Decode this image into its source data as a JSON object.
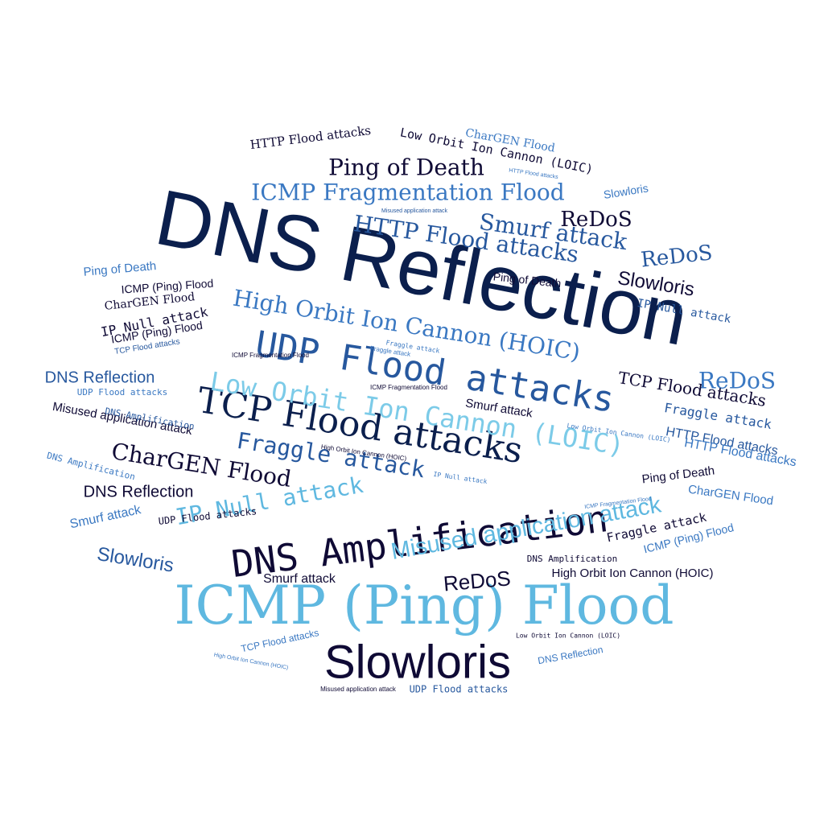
{
  "palette": {
    "navy": "#0b1f4d",
    "darknavy": "#0f0a35",
    "blue": "#27589e",
    "mid": "#3a78c2",
    "light": "#5fb8e0",
    "pale": "#7ccbe8"
  },
  "words": [
    {
      "text": "DNS Reflection",
      "color": "navy"
    },
    {
      "text": "ICMP (Ping) Flood",
      "color": "light"
    },
    {
      "text": "Slowloris",
      "color": "darknavy"
    },
    {
      "text": "DNS Amplification",
      "color": "darknavy"
    },
    {
      "text": "UDP Flood attacks",
      "color": "blue"
    },
    {
      "text": "TCP Flood attacks",
      "color": "navy"
    },
    {
      "text": "Low Orbit Ion Cannon (LOIC)",
      "color": "pale"
    },
    {
      "text": "High Orbit Ion Cannon (HOIC)",
      "color": "mid"
    },
    {
      "text": "Misused application attack",
      "color": "light"
    },
    {
      "text": "ICMP Fragmentation Flood",
      "color": "mid"
    },
    {
      "text": "HTTP Flood attacks",
      "color": "blue"
    },
    {
      "text": "Ping of Death",
      "color": "darknavy"
    },
    {
      "text": "Fraggle attack",
      "color": "blue"
    },
    {
      "text": "IP Null attack",
      "color": "light"
    },
    {
      "text": "CharGEN Flood",
      "color": "darknavy"
    },
    {
      "text": "Smurf attack",
      "color": "blue"
    },
    {
      "text": "ReDoS",
      "color": "darknavy"
    },
    {
      "text": "ReDoS",
      "color": "blue"
    },
    {
      "text": "ReDoS",
      "color": "mid"
    },
    {
      "text": "ReDoS",
      "color": "darknavy"
    },
    {
      "text": "Slowloris",
      "color": "darknavy"
    },
    {
      "text": "Slowloris",
      "color": "blue"
    },
    {
      "text": "Slowloris",
      "color": "mid"
    },
    {
      "text": "DNS Reflection",
      "color": "blue"
    },
    {
      "text": "DNS Reflection",
      "color": "darknavy"
    },
    {
      "text": "DNS Reflection",
      "color": "mid"
    },
    {
      "text": "TCP Flood attacks",
      "color": "darknavy"
    },
    {
      "text": "TCP Flood attacks",
      "color": "mid"
    },
    {
      "text": "TCP Flood attacks",
      "color": "blue"
    },
    {
      "text": "HTTP Flood attacks",
      "color": "darknavy"
    },
    {
      "text": "HTTP Flood attacks",
      "color": "blue"
    },
    {
      "text": "HTTP Flood attacks",
      "color": "mid"
    },
    {
      "text": "Fraggle attack",
      "color": "blue"
    },
    {
      "text": "Fraggle attack",
      "color": "darknavy"
    },
    {
      "text": "Fraggle attack",
      "color": "mid"
    },
    {
      "text": "Smurf attack",
      "color": "darknavy"
    },
    {
      "text": "Smurf attack",
      "color": "darknavy"
    },
    {
      "text": "Smurf attack",
      "color": "mid"
    },
    {
      "text": "Ping of Death",
      "color": "mid"
    },
    {
      "text": "Ping of Death",
      "color": "darknavy"
    },
    {
      "text": "Ping of Death",
      "color": "darknavy"
    },
    {
      "text": "CharGEN Flood",
      "color": "mid"
    },
    {
      "text": "CharGEN Flood",
      "color": "darknavy"
    },
    {
      "text": "CharGEN Flood",
      "color": "mid"
    },
    {
      "text": "IP Null attack",
      "color": "darknavy"
    },
    {
      "text": "IP Null attack",
      "color": "blue"
    },
    {
      "text": "IP Null attack",
      "color": "mid"
    },
    {
      "text": "ICMP (Ping) Flood",
      "color": "darknavy"
    },
    {
      "text": "ICMP (Ping) Flood",
      "color": "darknavy"
    },
    {
      "text": "ICMP (Ping) Flood",
      "color": "mid"
    },
    {
      "text": "ICMP Fragmentation Flood",
      "color": "darknavy"
    },
    {
      "text": "ICMP Fragmentation Flood",
      "color": "darknavy"
    },
    {
      "text": "ICMP Fragmentation Flood",
      "color": "mid"
    },
    {
      "text": "UDP Flood attacks",
      "color": "mid"
    },
    {
      "text": "UDP Flood attacks",
      "color": "darknavy"
    },
    {
      "text": "UDP Flood attacks",
      "color": "blue"
    },
    {
      "text": "Misused application attack",
      "color": "darknavy"
    },
    {
      "text": "Misused application attack",
      "color": "darknavy"
    },
    {
      "text": "Misused application attack",
      "color": "blue"
    },
    {
      "text": "DNS Amplification",
      "color": "blue"
    },
    {
      "text": "DNS Amplification",
      "color": "mid"
    },
    {
      "text": "DNS Amplification",
      "color": "darknavy"
    },
    {
      "text": "High Orbit Ion Cannon (HOIC)",
      "color": "darknavy"
    },
    {
      "text": "High Orbit Ion Cannon (HOIC)",
      "color": "darknavy"
    },
    {
      "text": "High Orbit Ion Cannon (HOIC)",
      "color": "mid"
    },
    {
      "text": "Low Orbit Ion Cannon (LOIC)",
      "color": "darknavy"
    },
    {
      "text": "Low Orbit Ion Cannon (LOIC)",
      "color": "mid"
    },
    {
      "text": "Low Orbit Ion Cannon (LOIC)",
      "color": "darknavy"
    },
    {
      "text": "HTTP Flood attacks",
      "color": "mid"
    },
    {
      "text": "Fraggle attack",
      "color": "mid"
    }
  ]
}
